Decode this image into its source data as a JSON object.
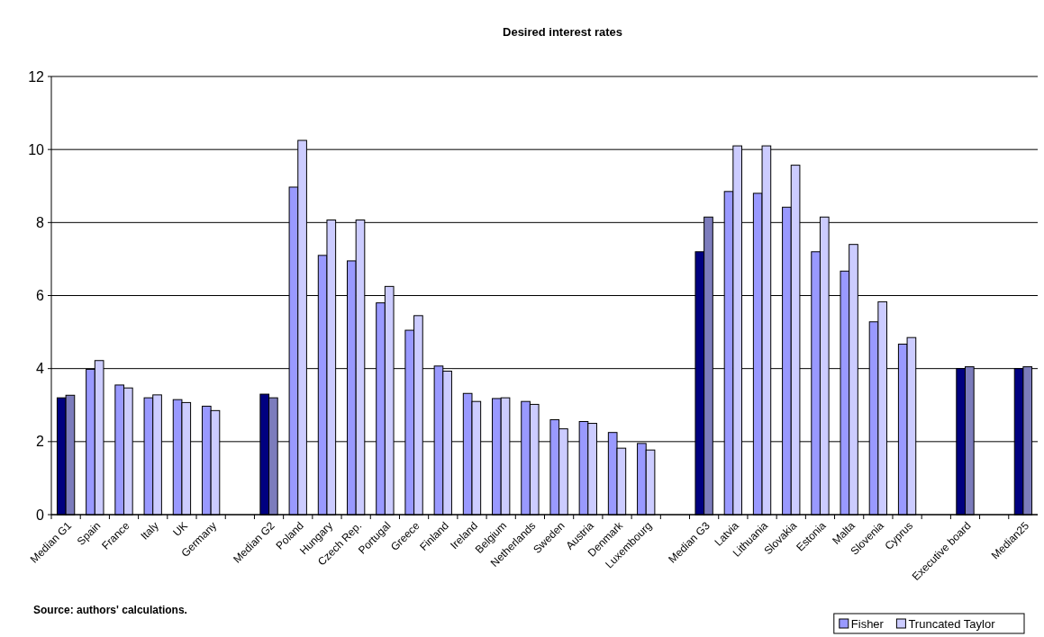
{
  "chart_data": {
    "type": "bar",
    "title": "Desired interest rates",
    "categories": [
      "Median G1",
      "Spain",
      "France",
      "Italy",
      "UK",
      "Germany",
      null,
      "Median G2",
      "Poland",
      "Hungary",
      "Czech Rep.",
      "Portugal",
      "Greece",
      "Finland",
      "Ireland",
      "Belgium",
      "Netherlands",
      "Sweden",
      "Austria",
      "Denmark",
      "Luxembourg",
      null,
      "Median G3",
      "Latvia",
      "Lithuania",
      "Slovakia",
      "Estonia",
      "Malta",
      "Slovenia",
      "Cyprus",
      null,
      "Executive board",
      null,
      "Median25"
    ],
    "series": [
      {
        "name": "Fisher",
        "color": "#9999ff",
        "values": [
          3.2,
          3.98,
          3.55,
          3.2,
          3.15,
          2.97,
          null,
          3.3,
          8.97,
          7.1,
          6.95,
          5.8,
          5.05,
          4.07,
          3.32,
          3.18,
          3.1,
          2.6,
          2.55,
          2.25,
          1.95,
          null,
          7.2,
          8.85,
          8.8,
          8.42,
          7.2,
          6.67,
          5.28,
          4.67,
          null,
          4.0,
          null,
          4.0
        ],
        "colors": [
          "#000080",
          "#9999ff",
          "#9999ff",
          "#9999ff",
          "#9999ff",
          "#9999ff",
          null,
          "#000080",
          "#9999ff",
          "#9999ff",
          "#9999ff",
          "#9999ff",
          "#9999ff",
          "#9999ff",
          "#9999ff",
          "#9999ff",
          "#9999ff",
          "#9999ff",
          "#9999ff",
          "#9999ff",
          "#9999ff",
          null,
          "#000080",
          "#9999ff",
          "#9999ff",
          "#9999ff",
          "#9999ff",
          "#9999ff",
          "#9999ff",
          "#9999ff",
          null,
          "#000080",
          null,
          "#000080"
        ]
      },
      {
        "name": "Truncated Taylor",
        "color": "#ccccff",
        "values": [
          3.27,
          4.22,
          3.47,
          3.28,
          3.07,
          2.85,
          null,
          3.2,
          10.25,
          8.07,
          8.07,
          6.25,
          5.45,
          3.93,
          3.1,
          3.2,
          3.02,
          2.35,
          2.5,
          1.82,
          1.77,
          null,
          8.15,
          10.1,
          10.1,
          9.57,
          8.15,
          7.4,
          5.83,
          4.85,
          null,
          4.05,
          null,
          4.05
        ],
        "colors": [
          "#7c7cbc",
          "#ccccff",
          "#ccccff",
          "#ccccff",
          "#ccccff",
          "#ccccff",
          null,
          "#7c7cbc",
          "#ccccff",
          "#ccccff",
          "#ccccff",
          "#ccccff",
          "#ccccff",
          "#ccccff",
          "#ccccff",
          "#ccccff",
          "#ccccff",
          "#ccccff",
          "#ccccff",
          "#ccccff",
          "#ccccff",
          null,
          "#7c7cbc",
          "#ccccff",
          "#ccccff",
          "#ccccff",
          "#ccccff",
          "#ccccff",
          "#ccccff",
          "#ccccff",
          null,
          "#7c7cbc",
          null,
          "#7c7cbc"
        ]
      }
    ],
    "ylim": [
      0,
      12
    ],
    "yticks": [
      0,
      2,
      4,
      6,
      8,
      10,
      12
    ],
    "grid": "y",
    "legend": "bottom right",
    "annotations": [
      "Source: authors' calculations."
    ]
  }
}
